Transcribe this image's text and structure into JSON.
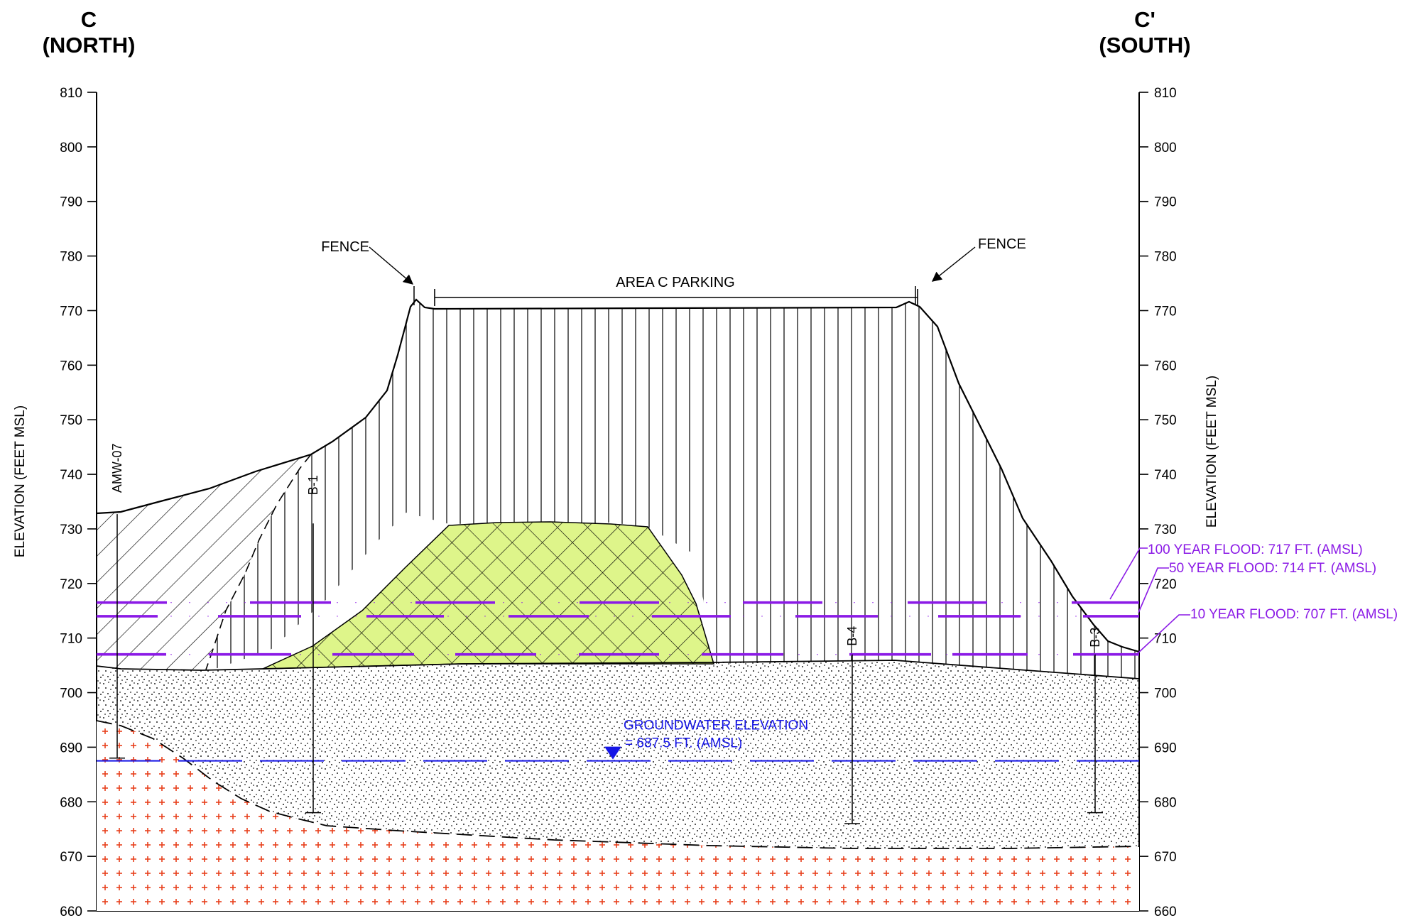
{
  "title_left": {
    "letter": "C",
    "direction": "(NORTH)"
  },
  "title_right": {
    "letter": "C'",
    "direction": "(SOUTH)"
  },
  "axis": {
    "label": "ELEVATION (FEET MSL)",
    "ticks": [
      "810",
      "800",
      "790",
      "780",
      "770",
      "760",
      "750",
      "740",
      "730",
      "720",
      "710",
      "700",
      "690",
      "680",
      "670",
      "660"
    ],
    "min": 660,
    "max": 810
  },
  "labels": {
    "fence_left": "FENCE",
    "fence_right": "FENCE",
    "parking": "AREA C PARKING"
  },
  "borings": [
    {
      "name": "AMW-07",
      "top": 732.7,
      "bottom": 688
    },
    {
      "name": "B-1",
      "top": 731,
      "bottom": 678
    },
    {
      "name": "B-4",
      "top": 707,
      "bottom": 676
    },
    {
      "name": "B-3",
      "top": 707,
      "bottom": 678
    }
  ],
  "groundwater": {
    "line1": "GROUNDWATER ELEVATION",
    "line2": "= 687.5 FT. (AMSL)",
    "elevation": 687.5,
    "color": "#1515E6"
  },
  "floods": [
    {
      "label": "100 YEAR FLOOD: 717 FT. (AMSL)",
      "elevation": 716.5
    },
    {
      "label": "50 YEAR FLOOD: 714 FT. (AMSL)",
      "elevation": 714
    },
    {
      "label": "10 YEAR FLOOD: 707 FT. (AMSL)",
      "elevation": 707
    }
  ],
  "colors": {
    "flood": "#8B1AE6",
    "groundwater": "#1515E6",
    "bedrock_cross": "#E8401C",
    "fill_zone": "#DEF58A"
  }
}
